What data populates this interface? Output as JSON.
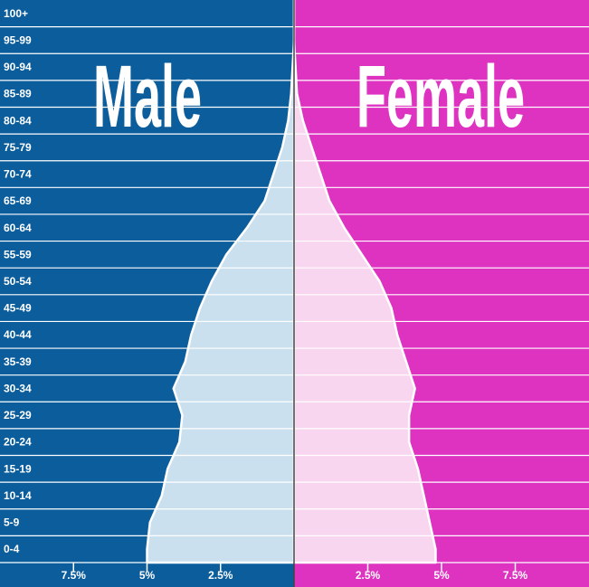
{
  "chart_data": {
    "type": "pyramid",
    "categories": [
      "100+",
      "95-99",
      "90-94",
      "85-89",
      "80-84",
      "75-79",
      "70-74",
      "65-69",
      "60-64",
      "55-59",
      "50-54",
      "45-49",
      "40-44",
      "35-39",
      "30-34",
      "25-29",
      "20-24",
      "15-19",
      "10-14",
      "5-9",
      "0-4"
    ],
    "series": [
      {
        "name": "Male",
        "color": "#0b5d9c",
        "fill": "#cbe0ee",
        "values": [
          0,
          0,
          0.05,
          0.1,
          0.2,
          0.4,
          0.7,
          1.0,
          1.6,
          2.3,
          2.8,
          3.2,
          3.5,
          3.7,
          4.1,
          3.8,
          3.9,
          4.3,
          4.5,
          4.9,
          5.0
        ]
      },
      {
        "name": "Female",
        "color": "#dd33c0",
        "fill": "#f9d6ef",
        "values": [
          0,
          0,
          0.05,
          0.1,
          0.3,
          0.6,
          0.9,
          1.2,
          1.7,
          2.3,
          2.9,
          3.3,
          3.5,
          3.8,
          4.1,
          3.9,
          3.9,
          4.2,
          4.4,
          4.6,
          4.8
        ]
      }
    ],
    "xlim": [
      0,
      10
    ],
    "xticks": [
      {
        "value": 7.5,
        "label": "7.5%"
      },
      {
        "value": 5,
        "label": "5%"
      },
      {
        "value": 2.5,
        "label": "2.5%"
      }
    ]
  }
}
